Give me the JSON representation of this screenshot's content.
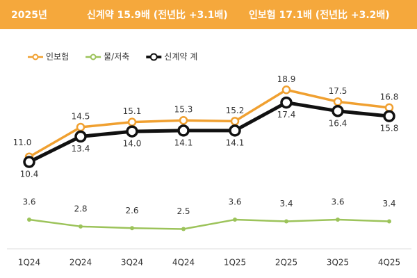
{
  "chart_data": {
    "type": "line",
    "header": [
      "2025년",
      "신계약 15.9배 (전년比 +3.1배)",
      "인보험 17.1배 (전년比 +3.2배)"
    ],
    "categories": [
      "1Q24",
      "2Q24",
      "3Q24",
      "4Q24",
      "1Q25",
      "2Q25",
      "3Q25",
      "4Q25"
    ],
    "series": [
      {
        "name": "인보험",
        "color": "#f0a030",
        "values": [
          11.0,
          14.5,
          15.1,
          15.3,
          15.2,
          18.9,
          17.5,
          16.8
        ],
        "value_labels": [
          "11.0",
          "14.5",
          "15.1",
          "15.3",
          "15.2",
          "18.9",
          "17.5",
          "16.8"
        ]
      },
      {
        "name": "물/저축",
        "color": "#9cc35a",
        "values": [
          3.6,
          2.8,
          2.6,
          2.5,
          3.6,
          3.4,
          3.6,
          3.4
        ],
        "value_labels": [
          "3.6",
          "2.8",
          "2.6",
          "2.5",
          "3.6",
          "3.4",
          "3.6",
          "3.4"
        ]
      },
      {
        "name": "신계약 계",
        "color": "#111111",
        "values": [
          10.4,
          13.4,
          14.0,
          14.1,
          14.1,
          17.4,
          16.4,
          15.8
        ],
        "value_labels": [
          "10.4",
          "13.4",
          "14.0",
          "14.1",
          "14.1",
          "17.4",
          "16.4",
          "15.8"
        ]
      }
    ],
    "ylim": [
      0,
      24
    ],
    "legend": "top-left"
  }
}
